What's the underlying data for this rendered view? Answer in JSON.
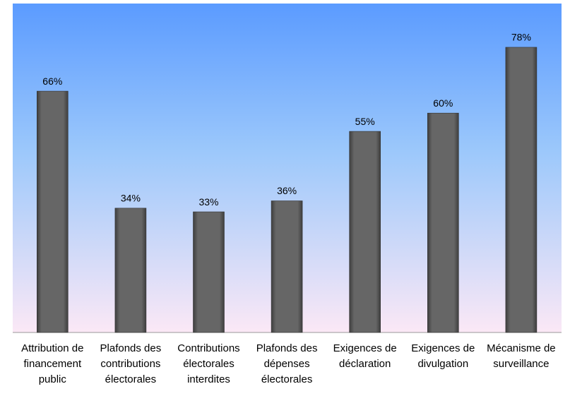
{
  "chart_data": {
    "type": "bar",
    "categories": [
      "Attribution de financement public",
      "Plafonds des contributions électorales",
      "Contributions électorales interdites",
      "Plafonds des dépenses électorales",
      "Exigences de déclaration",
      "Exigences de divulgation",
      "Mécanisme de surveillance"
    ],
    "values": [
      66,
      34,
      33,
      36,
      55,
      60,
      78
    ],
    "value_labels": [
      "66%",
      "34%",
      "33%",
      "36%",
      "55%",
      "60%",
      "78%"
    ],
    "color": "#5f5f5f"
  }
}
